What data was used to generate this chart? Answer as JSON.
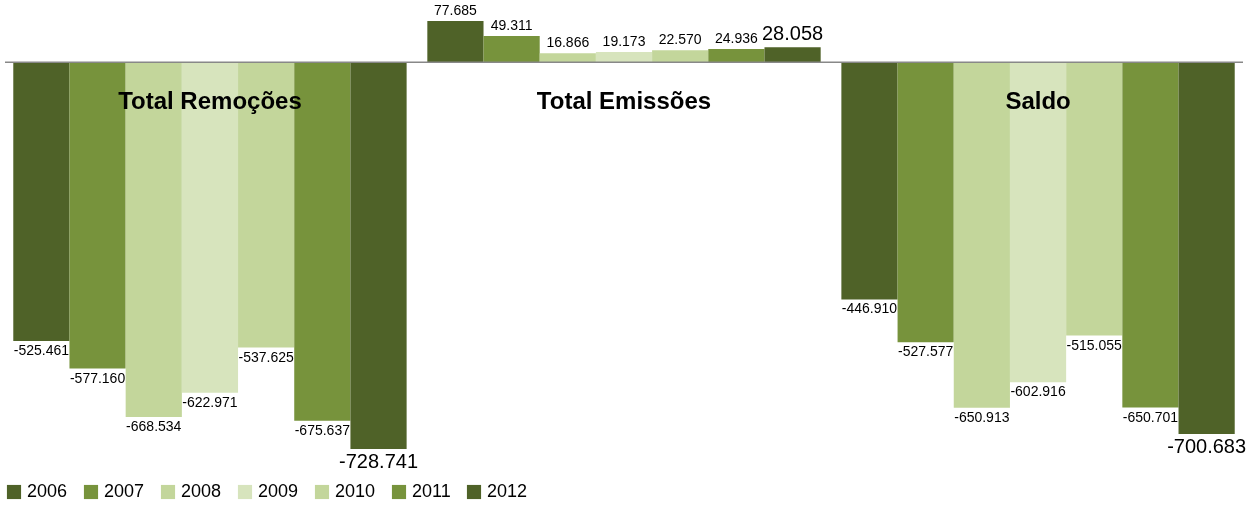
{
  "chart_data": {
    "type": "bar",
    "categories": [
      "Total Remoções",
      "Total Emissões",
      "Saldo"
    ],
    "series": [
      {
        "name": "2006",
        "color": "#4f6228",
        "values": [
          -525461,
          77685,
          -446910
        ],
        "value_labels": [
          "-525.461",
          "77.685",
          "-446.910"
        ]
      },
      {
        "name": "2007",
        "color": "#77933c",
        "values": [
          -577160,
          49311,
          -527577
        ],
        "value_labels": [
          "-577.160",
          "49.311",
          "-527.577"
        ]
      },
      {
        "name": "2008",
        "color": "#c3d69b",
        "values": [
          -668534,
          16866,
          -650913
        ],
        "value_labels": [
          "-668.534",
          "16.866",
          "-650.913"
        ]
      },
      {
        "name": "2009",
        "color": "#d7e4bd",
        "values": [
          -622971,
          19173,
          -602916
        ],
        "value_labels": [
          "-622.971",
          "19.173",
          "-602.916"
        ]
      },
      {
        "name": "2010",
        "color": "#c3d69b",
        "values": [
          -537625,
          22570,
          -515055
        ],
        "value_labels": [
          "-537.625",
          "22.570",
          "-515.055"
        ]
      },
      {
        "name": "2011",
        "color": "#77933c",
        "values": [
          -675637,
          24936,
          -650701
        ],
        "value_labels": [
          "-675.637",
          "24.936",
          "-650.701"
        ]
      },
      {
        "name": "2012",
        "color": "#4f6228",
        "values": [
          -728741,
          28058,
          -700683
        ],
        "value_labels": [
          "-728.741",
          "28.058",
          "-700.683"
        ]
      }
    ],
    "legend": "bottom"
  }
}
